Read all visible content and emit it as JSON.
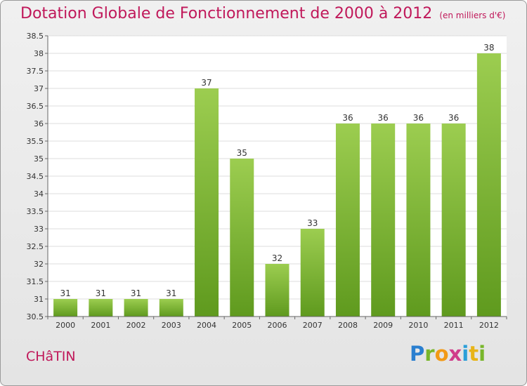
{
  "header": {
    "title": "Dotation Globale de Fonctionnement de 2000 à 2012",
    "unit": "(en milliers d'€)"
  },
  "commune": "CHâTIN",
  "logo": {
    "parts": [
      "P",
      "r",
      "o",
      "x",
      "i",
      "t",
      "i"
    ],
    "colors": [
      "#2a7fd0",
      "#78b62a",
      "#f29a16",
      "#d03c8a",
      "#2a9fd8",
      "#e8b417",
      "#78b62a"
    ]
  },
  "chart_data": {
    "type": "bar",
    "title": "Dotation Globale de Fonctionnement de 2000 à 2012",
    "subtitle": "(en milliers d'€)",
    "xlabel": "",
    "ylabel": "",
    "categories": [
      "2000",
      "2001",
      "2002",
      "2003",
      "2004",
      "2005",
      "2006",
      "2007",
      "2008",
      "2009",
      "2010",
      "2011",
      "2012"
    ],
    "values": [
      31,
      31,
      31,
      31,
      37,
      35,
      32,
      33,
      36,
      36,
      36,
      36,
      38
    ],
    "data_labels": [
      "31",
      "31",
      "31",
      "31",
      "37",
      "35",
      "32",
      "33",
      "36",
      "36",
      "36",
      "36",
      "38"
    ],
    "ylim": [
      30.5,
      38.5
    ],
    "yticks": [
      "30.5",
      "31",
      "31.5",
      "32",
      "32.5",
      "33",
      "33.5",
      "34",
      "34.5",
      "35",
      "35.5",
      "36",
      "36.5",
      "37",
      "37.5",
      "38",
      "38.5"
    ],
    "grid": true,
    "bar_color": "#7fb93a",
    "bar_color_light": "#9ccd50",
    "bar_color_dark": "#5f9a1e"
  }
}
